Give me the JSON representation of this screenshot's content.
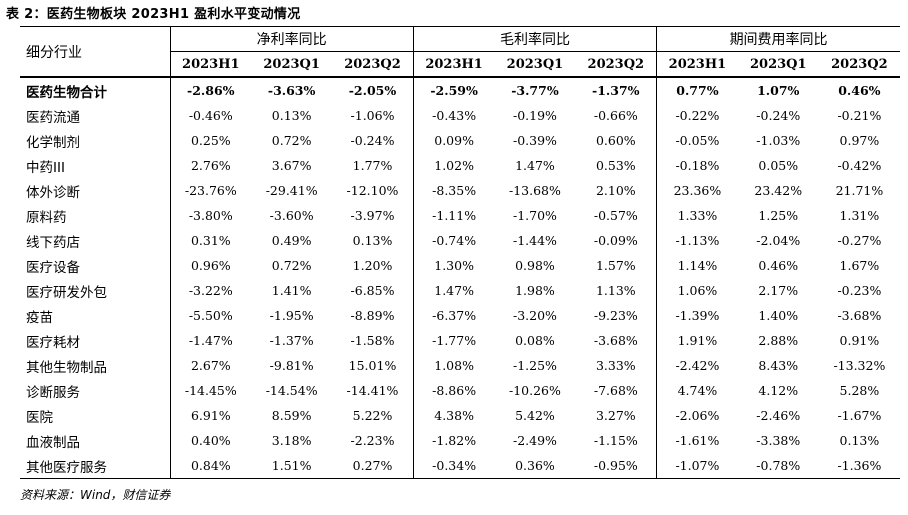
{
  "title": "表 2：医药生物板块 2023H1 盈利水平变动情况",
  "table": {
    "corner_label": "细分行业",
    "groups": [
      "净利率同比",
      "毛利率同比",
      "期间费用率同比"
    ],
    "periods": [
      "2023H1",
      "2023Q1",
      "2023Q2",
      "2023H1",
      "2023Q1",
      "2023Q2",
      "2023H1",
      "2023Q1",
      "2023Q2"
    ],
    "rows": [
      {
        "name": "医药生物合计",
        "values": [
          "-2.86%",
          "-3.63%",
          "-2.05%",
          "-2.59%",
          "-3.77%",
          "-1.37%",
          "0.77%",
          "1.07%",
          "0.46%"
        ]
      },
      {
        "name": "医药流通",
        "values": [
          "-0.46%",
          "0.13%",
          "-1.06%",
          "-0.43%",
          "-0.19%",
          "-0.66%",
          "-0.22%",
          "-0.24%",
          "-0.21%"
        ]
      },
      {
        "name": "化学制剂",
        "values": [
          "0.25%",
          "0.72%",
          "-0.24%",
          "0.09%",
          "-0.39%",
          "0.60%",
          "-0.05%",
          "-1.03%",
          "0.97%"
        ]
      },
      {
        "name": "中药III",
        "values": [
          "2.76%",
          "3.67%",
          "1.77%",
          "1.02%",
          "1.47%",
          "0.53%",
          "-0.18%",
          "0.05%",
          "-0.42%"
        ]
      },
      {
        "name": "体外诊断",
        "values": [
          "-23.76%",
          "-29.41%",
          "-12.10%",
          "-8.35%",
          "-13.68%",
          "2.10%",
          "23.36%",
          "23.42%",
          "21.71%"
        ]
      },
      {
        "name": "原料药",
        "values": [
          "-3.80%",
          "-3.60%",
          "-3.97%",
          "-1.11%",
          "-1.70%",
          "-0.57%",
          "1.33%",
          "1.25%",
          "1.31%"
        ]
      },
      {
        "name": "线下药店",
        "values": [
          "0.31%",
          "0.49%",
          "0.13%",
          "-0.74%",
          "-1.44%",
          "-0.09%",
          "-1.13%",
          "-2.04%",
          "-0.27%"
        ]
      },
      {
        "name": "医疗设备",
        "values": [
          "0.96%",
          "0.72%",
          "1.20%",
          "1.30%",
          "0.98%",
          "1.57%",
          "1.14%",
          "0.46%",
          "1.67%"
        ]
      },
      {
        "name": "医疗研发外包",
        "values": [
          "-3.22%",
          "1.41%",
          "-6.85%",
          "1.47%",
          "1.98%",
          "1.13%",
          "1.06%",
          "2.17%",
          "-0.23%"
        ]
      },
      {
        "name": "疫苗",
        "values": [
          "-5.50%",
          "-1.95%",
          "-8.89%",
          "-6.37%",
          "-3.20%",
          "-9.23%",
          "-1.39%",
          "1.40%",
          "-3.68%"
        ]
      },
      {
        "name": "医疗耗材",
        "values": [
          "-1.47%",
          "-1.37%",
          "-1.58%",
          "-1.77%",
          "0.08%",
          "-3.68%",
          "1.91%",
          "2.88%",
          "0.91%"
        ]
      },
      {
        "name": "其他生物制品",
        "values": [
          "2.67%",
          "-9.81%",
          "15.01%",
          "1.08%",
          "-1.25%",
          "3.33%",
          "-2.42%",
          "8.43%",
          "-13.32%"
        ]
      },
      {
        "name": "诊断服务",
        "values": [
          "-14.45%",
          "-14.54%",
          "-14.41%",
          "-8.86%",
          "-10.26%",
          "-7.68%",
          "4.74%",
          "4.12%",
          "5.28%"
        ]
      },
      {
        "name": "医院",
        "values": [
          "6.91%",
          "8.59%",
          "5.22%",
          "4.38%",
          "5.42%",
          "3.27%",
          "-2.06%",
          "-2.46%",
          "-1.67%"
        ]
      },
      {
        "name": "血液制品",
        "values": [
          "0.40%",
          "3.18%",
          "-2.23%",
          "-1.82%",
          "-2.49%",
          "-1.15%",
          "-1.61%",
          "-3.38%",
          "0.13%"
        ]
      },
      {
        "name": "其他医疗服务",
        "values": [
          "0.84%",
          "1.51%",
          "0.27%",
          "-0.34%",
          "0.36%",
          "-0.95%",
          "-1.07%",
          "-0.78%",
          "-1.36%"
        ]
      }
    ]
  },
  "source": "资料来源：Wind，财信证券"
}
